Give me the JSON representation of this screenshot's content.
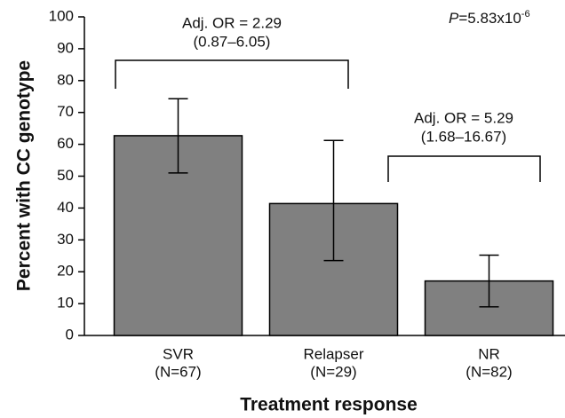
{
  "chart_data": {
    "type": "bar",
    "y_label": "Percent with CC genotype",
    "x_label": "Treatment response",
    "categories": [
      "SVR",
      "Relapser",
      "NR"
    ],
    "category_notes": [
      "(N=67)",
      "(N=29)",
      "(N=82)"
    ],
    "values": [
      62.7,
      41.4,
      17.1
    ],
    "lower": [
      51,
      23.5,
      9
    ],
    "upper": [
      74.3,
      61.2,
      25.2
    ],
    "color": "#808080",
    "ylim": [
      0,
      100
    ],
    "yticks": [
      0,
      10,
      20,
      30,
      40,
      50,
      60,
      70,
      80,
      90,
      100
    ],
    "annotations": [
      {
        "line1": "Adj. OR = 2.29",
        "line2": "(0.87–6.05)"
      },
      {
        "line1": "Adj. OR = 5.29",
        "line2": "(1.68–16.67)"
      }
    ],
    "p_value": {
      "symbol": "P",
      "text": "=5.83x10",
      "exponent": "-6"
    }
  }
}
